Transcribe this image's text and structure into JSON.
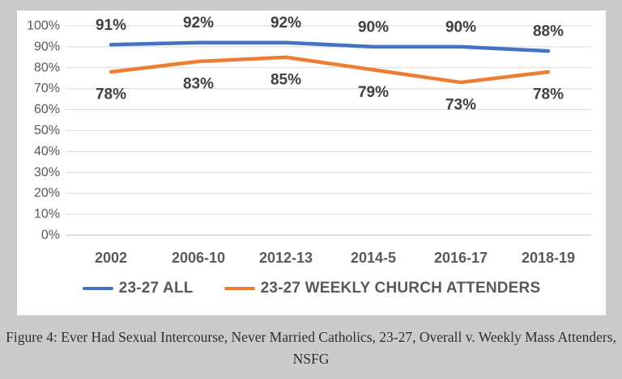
{
  "chart_data": {
    "type": "line",
    "categories": [
      "2002",
      "2006-10",
      "2012-13",
      "2014-5",
      "2016-17",
      "2018-19"
    ],
    "series": [
      {
        "name": "23-27 ALL",
        "color": "#4472C4",
        "values": [
          91,
          92,
          92,
          90,
          90,
          88
        ],
        "label_position": "above"
      },
      {
        "name": "23-27 WEEKLY CHURCH ATTENDERS",
        "color": "#ED7D31",
        "values": [
          78,
          83,
          85,
          79,
          73,
          78
        ],
        "label_position": "below"
      }
    ],
    "ylim": [
      0,
      100
    ],
    "ytick_step": 10,
    "ytick_suffix": "%",
    "data_label_suffix": "%",
    "grid": true,
    "legend_position": "bottom"
  },
  "caption": {
    "line1": "Figure 4: Ever Had Sexual Intercourse, Never Married Catholics, 23-27, Overall v. Weekly Mass Attenders,",
    "line2": "NSFG"
  },
  "colors": {
    "page_background": "#cbcbcb",
    "card_background": "#ffffff",
    "gridline": "#d9d9d9",
    "axis_line": "#bfbfbf",
    "axis_text": "#595959",
    "data_label_text": "#404040",
    "series_all": "#4472C4",
    "series_weekly": "#ED7D31"
  }
}
